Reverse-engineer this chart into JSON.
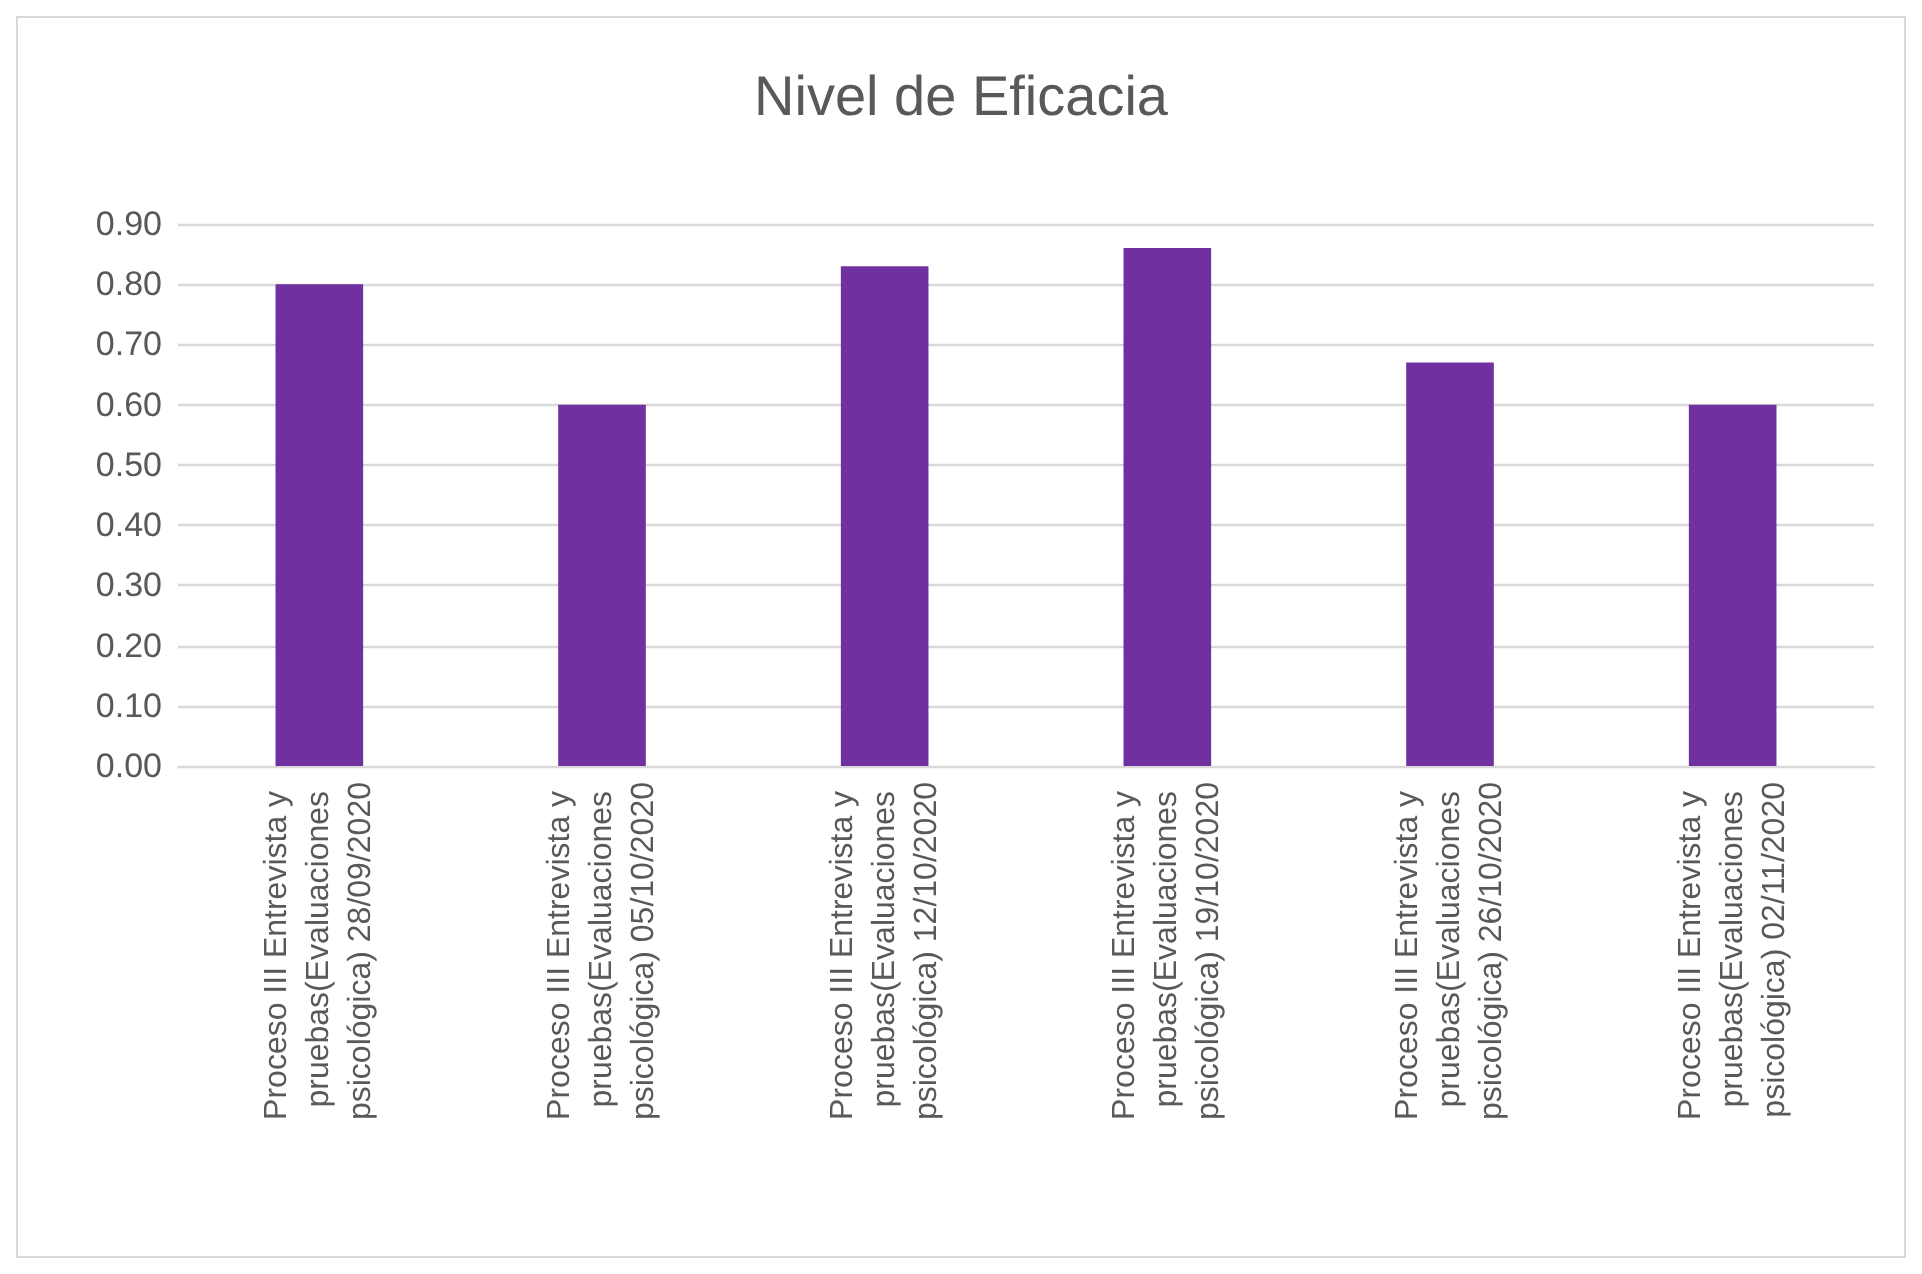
{
  "chart_data": {
    "type": "bar",
    "title": "Nivel de Eficacia",
    "categories": [
      "Proceso III Entrevista y pruebas(Evaluaciones psicológica) 28/09/2020",
      "Proceso III Entrevista y pruebas(Evaluaciones psicológica) 05/10/2020",
      "Proceso III Entrevista y pruebas(Evaluaciones psicológica) 12/10/2020",
      "Proceso III Entrevista y pruebas(Evaluaciones psicológica) 19/10/2020",
      "Proceso III Entrevista y pruebas(Evaluaciones psicológica) 26/10/2020",
      "Proceso III Entrevista y pruebas(Evaluaciones psicológica) 02/11/2020"
    ],
    "values": [
      0.8,
      0.6,
      0.83,
      0.86,
      0.67,
      0.6
    ],
    "color": "#7030a0",
    "ylim": [
      0,
      0.9
    ],
    "yticks": [
      {
        "value": 0,
        "label": "0.00"
      },
      {
        "value": 0.1,
        "label": "0.10"
      },
      {
        "value": 0.2,
        "label": "0.20"
      },
      {
        "value": 0.3,
        "label": "0.30"
      },
      {
        "value": 0.4,
        "label": "0.40"
      },
      {
        "value": 0.5,
        "label": "0.50"
      },
      {
        "value": 0.6,
        "label": "0.60"
      },
      {
        "value": 0.7,
        "label": "0.70"
      },
      {
        "value": 0.8,
        "label": "0.80"
      },
      {
        "value": 0.9,
        "label": "0.90"
      }
    ],
    "grid": true
  }
}
